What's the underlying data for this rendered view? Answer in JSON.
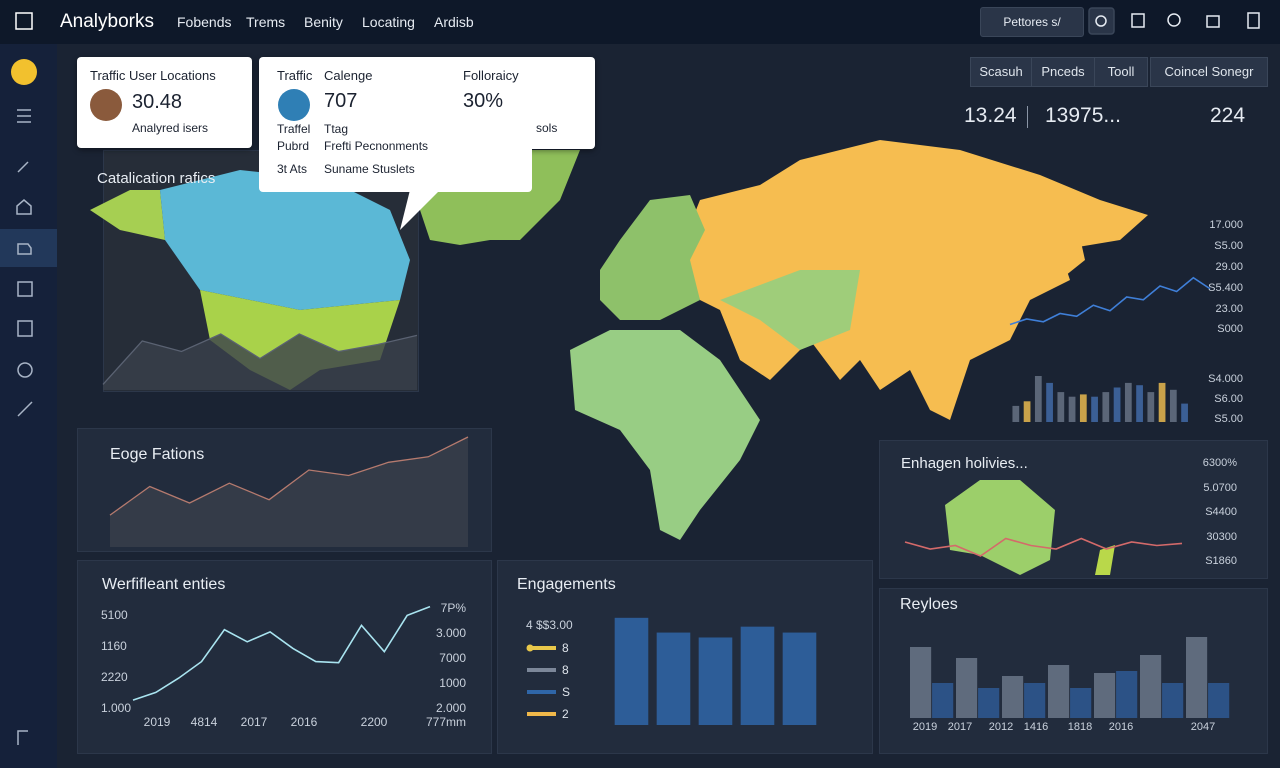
{
  "header": {
    "brand": "Analyborks",
    "nav": [
      "Fobends",
      "Trems",
      "Benity",
      "Locating",
      "Ardisb"
    ],
    "action": "Pettores s/"
  },
  "toolbar": {
    "buttons": [
      "Scasuh",
      "Pnceds",
      "Tooll"
    ],
    "select": "Coincel Sonegr"
  },
  "stats": [
    "13.24",
    "13975...",
    "224"
  ],
  "card_users": {
    "title": "Traffic User Locations",
    "value": "30.48",
    "caption": "Analyred isers"
  },
  "card_traffic": {
    "label": "Traffic",
    "title": "Calenge",
    "value": "707",
    "side_title": "Folloraicy",
    "side_value": "30%",
    "side_caption": "sols",
    "rows": [
      [
        "Traffel",
        "Ttag"
      ],
      [
        "Pubrd",
        "Frefti Pecnonments"
      ],
      [
        "3t Ats",
        "Suname Stuslets"
      ]
    ]
  },
  "map_panel": {
    "title": "Catalication rafics",
    "chart": {
      "type": "area",
      "values": [
        8,
        70,
        55,
        80,
        45,
        80,
        55,
        65,
        78
      ],
      "ylim": [
        0,
        100
      ],
      "color": "#5a6272"
    }
  },
  "edge_panel": {
    "title": "Eoge Fations",
    "chart": {
      "type": "area",
      "values": [
        29,
        55,
        40,
        58,
        43,
        70,
        65,
        77,
        82,
        100
      ],
      "ylim": [
        0,
        100
      ],
      "color": "#b57a6e"
    }
  },
  "werf_panel": {
    "title": "Werfifleant enties",
    "left_labels": [
      "5100",
      "1160",
      "2220",
      "1.000"
    ],
    "right_labels": [
      "7P%",
      "3.000",
      "7000",
      "1000",
      "2.000"
    ],
    "categories": [
      "2019",
      "4814",
      "2017",
      "2016",
      "2200",
      "777mm"
    ],
    "chart": {
      "type": "line",
      "values": [
        9,
        16,
        29,
        44,
        73,
        62,
        71,
        56,
        44,
        43,
        77,
        53,
        86,
        94
      ],
      "ylim": [
        0,
        100
      ],
      "color": "#a9e4f0"
    }
  },
  "engagements_panel": {
    "title": "Engagements",
    "legend_heading": "4 $$3.00",
    "legend": [
      {
        "name": "8",
        "color": "#e9c84a"
      },
      {
        "name": "8",
        "color": "#7c8799"
      },
      {
        "name": "S",
        "color": "#2f66a8"
      },
      {
        "name": "2",
        "color": "#f0b84a"
      }
    ],
    "chart": {
      "type": "bar",
      "values": [
        109,
        94,
        89,
        100,
        94
      ],
      "ylim": [
        0,
        120
      ],
      "color": "#2d5d98"
    }
  },
  "holivies_panel": {
    "title": "Enhagen holivies...",
    "right_labels": [
      "6300%",
      "5.0700",
      "S4400",
      "30300",
      "S1860"
    ],
    "chart": {
      "type": "line",
      "values": [
        40,
        30,
        35,
        20,
        45,
        35,
        30,
        45,
        30,
        40,
        35,
        38
      ],
      "ylim": [
        0,
        100
      ],
      "color": "#d46a6a"
    }
  },
  "trend_panel": {
    "line_labels": [
      "17.000",
      "S5.00",
      "29.00",
      "S5.400",
      "23.00",
      "S000"
    ],
    "bar_labels": [
      "S4.000",
      "S6.00",
      "S5.00"
    ],
    "line": {
      "type": "line",
      "values": [
        10,
        20,
        15,
        30,
        25,
        45,
        35,
        60,
        55,
        80,
        70,
        95,
        75
      ],
      "ylim": [
        0,
        100
      ],
      "color": "#3f7fd8"
    },
    "bars": {
      "type": "bar",
      "values": [
        35,
        45,
        100,
        85,
        65,
        55,
        60,
        55,
        65,
        75,
        85,
        80,
        65,
        85,
        70,
        40
      ],
      "ylim": [
        0,
        100
      ],
      "colors": [
        "#5b6678",
        "#c9a24a",
        "#5b6678",
        "#3b5f95",
        "#5b6678",
        "#5b6678",
        "#c9a24a",
        "#3b5f95",
        "#5b6678",
        "#3b5f95",
        "#5b6678",
        "#3b5f95",
        "#5b6678",
        "#c9a24a",
        "#5b6678",
        "#3b5f95"
      ]
    }
  },
  "reyloes_panel": {
    "title": "Reyloes",
    "categories": [
      "2019",
      "2017",
      "2012",
      "1416",
      "1818",
      "2016",
      "2047"
    ],
    "chart": {
      "type": "grouped-bar",
      "ylim": [
        0,
        90
      ],
      "series": [
        {
          "color": "#5f6b7d",
          "values": [
            71,
            60,
            42,
            53,
            45,
            63,
            81
          ]
        },
        {
          "color": "#2c5286",
          "values": [
            35,
            30,
            35,
            30,
            47,
            35,
            35
          ]
        }
      ]
    }
  }
}
